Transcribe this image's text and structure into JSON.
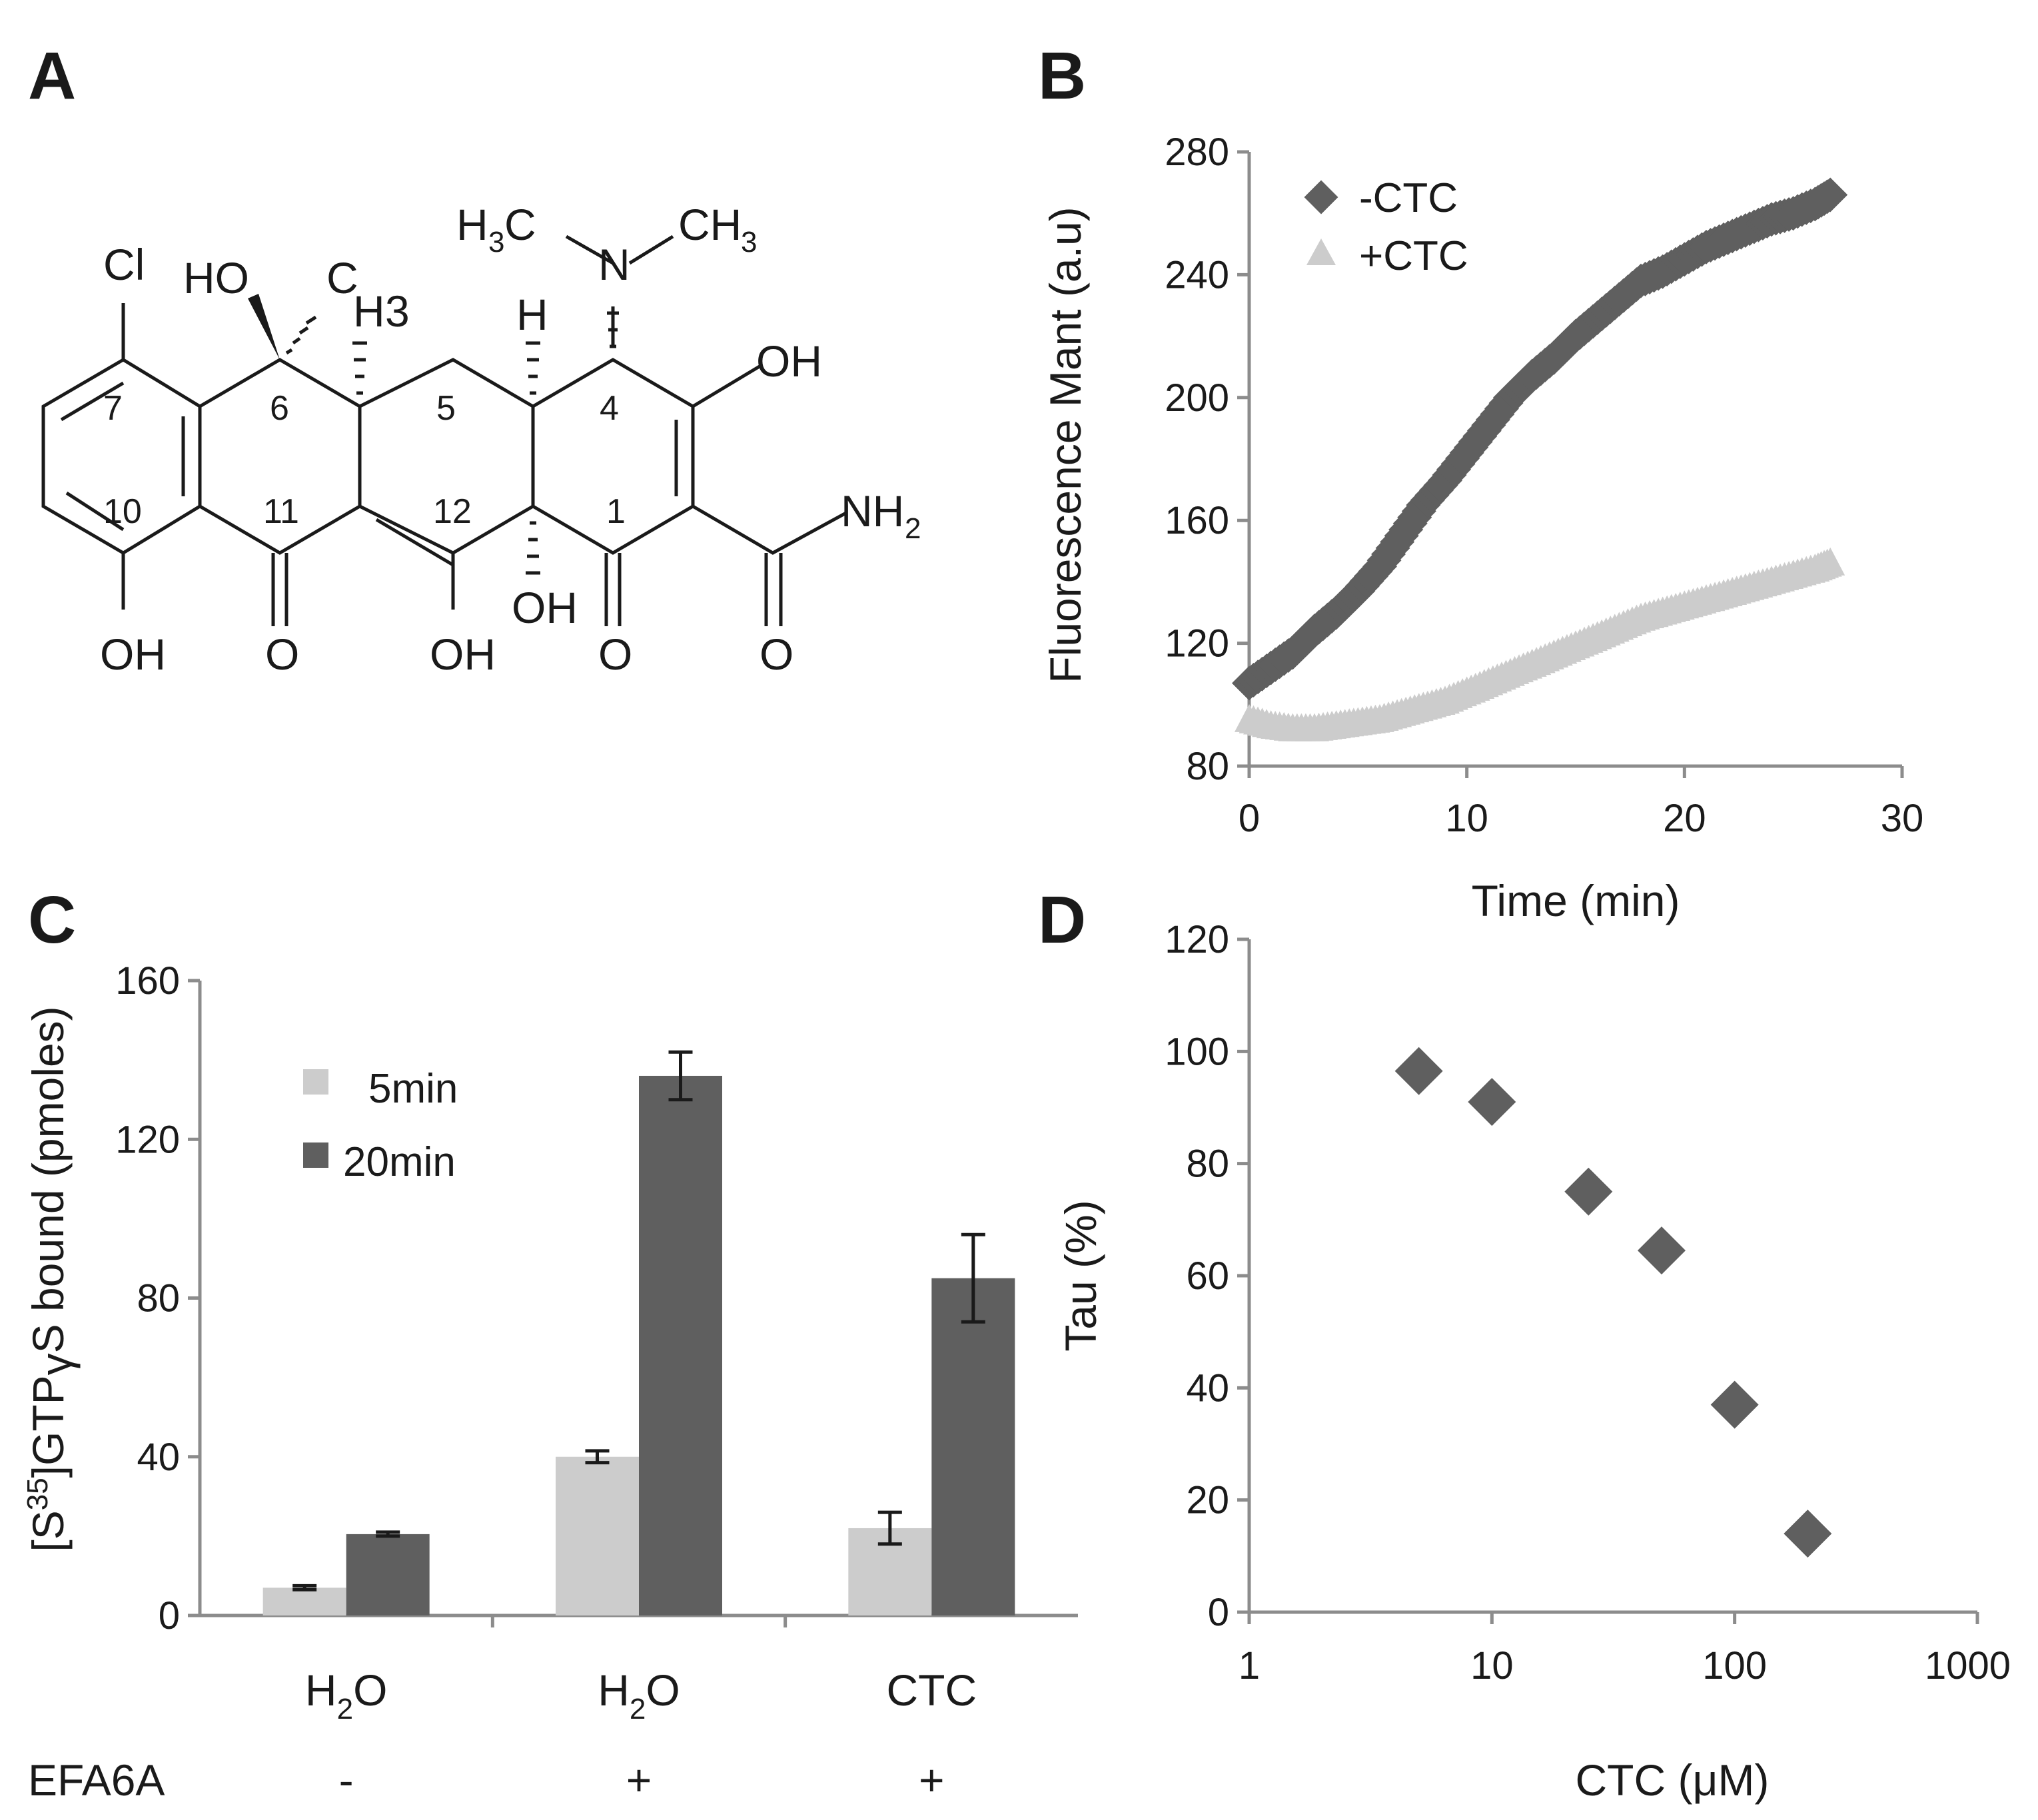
{
  "panels": {
    "a": "A",
    "b": "B",
    "c": "C",
    "d": "D"
  },
  "structure": {
    "atoms": {
      "cl": "Cl",
      "ho": "HO",
      "c": "C",
      "h3": "H",
      "h3_sub": "3",
      "h3c_h": "H",
      "h3c_sub": "3",
      "h3c_c": "C",
      "n": "N",
      "ch3_c": "CH",
      "ch3_sub": "3",
      "h_top": "H",
      "oh_right": "OH",
      "nh2": "NH",
      "nh2_sub": "2",
      "oh_1": "OH",
      "o_11": "O",
      "oh_12": "OH",
      "oh_12a": "OH",
      "o_1": "O",
      "o_amide": "O"
    },
    "numbers": [
      "7",
      "6",
      "5",
      "4",
      "10",
      "11",
      "12",
      "1"
    ]
  },
  "chart_data": [
    {
      "panel": "B",
      "type": "scatter",
      "xlabel": "Time (min)",
      "ylabel": "Fluorescence Mant (a.u)",
      "xlim": [
        0,
        30
      ],
      "ylim": [
        80,
        280
      ],
      "xticks": [
        "0",
        "10",
        "20",
        "30"
      ],
      "yticks": [
        "80",
        "120",
        "160",
        "200",
        "240",
        "280"
      ],
      "legend": "top-left",
      "series": [
        {
          "name": "-CTC",
          "marker": "diamond",
          "color": "#5f5f5f",
          "x": [
            0,
            1,
            2,
            3,
            4,
            5,
            6,
            7,
            8,
            9,
            10,
            11,
            12,
            13,
            14,
            15,
            16,
            17,
            18,
            19,
            20,
            21,
            22,
            23,
            24,
            25,
            26,
            26.7
          ],
          "y": [
            107,
            112,
            117,
            124,
            130,
            137,
            145,
            155,
            165,
            173,
            182,
            191,
            200,
            207,
            213,
            220,
            226,
            232,
            238,
            241,
            245,
            249,
            252,
            255,
            258,
            260,
            263,
            266
          ]
        },
        {
          "name": "+CTC",
          "marker": "triangle",
          "color": "#cccccc",
          "x": [
            0,
            1,
            2,
            3,
            4,
            5,
            6,
            7,
            8,
            9,
            10,
            11,
            12,
            13,
            14,
            15,
            16,
            17,
            18,
            19,
            20,
            21,
            22,
            23,
            24,
            25,
            26,
            26.7
          ],
          "y": [
            95,
            93,
            92,
            92,
            93,
            94,
            95,
            97,
            99,
            101,
            104,
            107,
            110,
            113,
            116,
            119,
            122,
            125,
            128,
            130,
            132,
            134,
            136,
            138,
            140,
            142,
            144,
            146
          ]
        }
      ]
    },
    {
      "panel": "C",
      "type": "bar",
      "ylabel": "[S35]GTPγS bound (pmoles)",
      "ylabel_parts": [
        "[S",
        "35",
        "]GTP",
        "γ",
        "S bound (pmoles)"
      ],
      "ylim": [
        0,
        160
      ],
      "yticks": [
        "0",
        "40",
        "80",
        "120",
        "160"
      ],
      "categories": [
        {
          "main": "H",
          "sub": "2",
          "tail": "O"
        },
        {
          "main": "H",
          "sub": "2",
          "tail": "O"
        },
        {
          "main": "CTC",
          "sub": "",
          "tail": ""
        }
      ],
      "row_label": "EFA6A",
      "row_values": [
        "-",
        "+",
        "+"
      ],
      "legend": "top-left",
      "series": [
        {
          "name": "5min",
          "color": "#cccccc",
          "values": [
            7,
            40,
            22
          ],
          "errors": [
            0.5,
            1.5,
            4
          ]
        },
        {
          "name": "20min",
          "color": "#5f5f5f",
          "values": [
            20.5,
            136,
            85
          ],
          "errors": [
            0.5,
            6,
            11
          ]
        }
      ]
    },
    {
      "panel": "D",
      "type": "scatter",
      "xscale": "log",
      "xlabel": "CTC (μM)",
      "ylabel": "Tau (%)",
      "xlim": [
        1,
        1000
      ],
      "ylim": [
        0,
        120
      ],
      "xticks": [
        "1",
        "10",
        "100",
        "1000"
      ],
      "yticks": [
        "0",
        "20",
        "40",
        "60",
        "80",
        "100",
        "120"
      ],
      "series": [
        {
          "name": "Tau",
          "marker": "diamond",
          "color": "#5f5f5f",
          "x": [
            5,
            10,
            25,
            50,
            100,
            200
          ],
          "y": [
            96.5,
            91,
            75,
            64.5,
            37,
            14
          ]
        }
      ]
    }
  ]
}
